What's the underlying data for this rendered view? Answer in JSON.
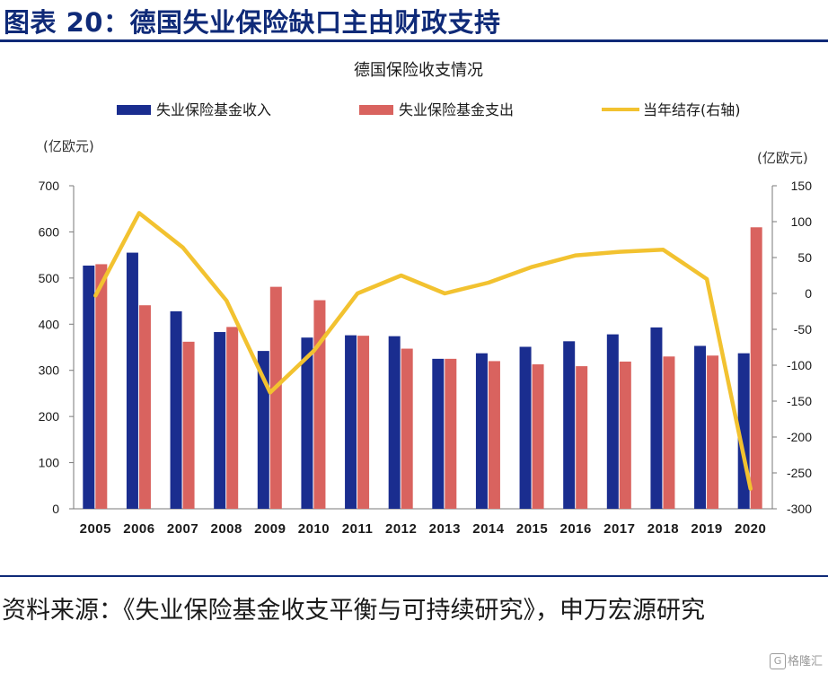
{
  "figure_title": "图表 20：德国失业保险缺口主由财政支持",
  "source_note": "资料来源：《失业保险基金收支平衡与可持续研究》，申万宏源研究",
  "watermark": "格隆汇",
  "colors": {
    "income": "#1a2d8f",
    "expense": "#d9635f",
    "balance": "#f2c230",
    "title": "#0f2a78"
  },
  "chart_data": {
    "type": "bar",
    "title": "德国保险收支情况",
    "left_unit": "(亿欧元)",
    "right_unit": "(亿欧元)",
    "categories": [
      "2005",
      "2006",
      "2007",
      "2008",
      "2009",
      "2010",
      "2011",
      "2012",
      "2013",
      "2014",
      "2015",
      "2016",
      "2017",
      "2018",
      "2019",
      "2020"
    ],
    "series": [
      {
        "name": "失业保险基金收入",
        "type": "bar",
        "axis": "left",
        "values": [
          527,
          555,
          428,
          383,
          342,
          371,
          376,
          374,
          325,
          337,
          351,
          363,
          378,
          393,
          353,
          337
        ]
      },
      {
        "name": "失业保险基金支出",
        "type": "bar",
        "axis": "left",
        "values": [
          530,
          441,
          362,
          394,
          481,
          452,
          375,
          347,
          325,
          320,
          313,
          309,
          319,
          330,
          332,
          610
        ]
      },
      {
        "name": "当年结存(右轴)",
        "type": "line",
        "axis": "right",
        "values": [
          -3,
          112,
          64,
          -10,
          -138,
          -80,
          0,
          25,
          0,
          15,
          37,
          53,
          58,
          61,
          20,
          -272
        ]
      }
    ],
    "ylim_left": [
      0,
      700
    ],
    "yticks_left": [
      0,
      100,
      200,
      300,
      400,
      500,
      600,
      700
    ],
    "ylim_right": [
      -300,
      150
    ],
    "yticks_right": [
      150,
      100,
      50,
      0,
      -50,
      -100,
      -150,
      -200,
      -250,
      -300
    ],
    "grid": false,
    "legend_position": "top"
  }
}
